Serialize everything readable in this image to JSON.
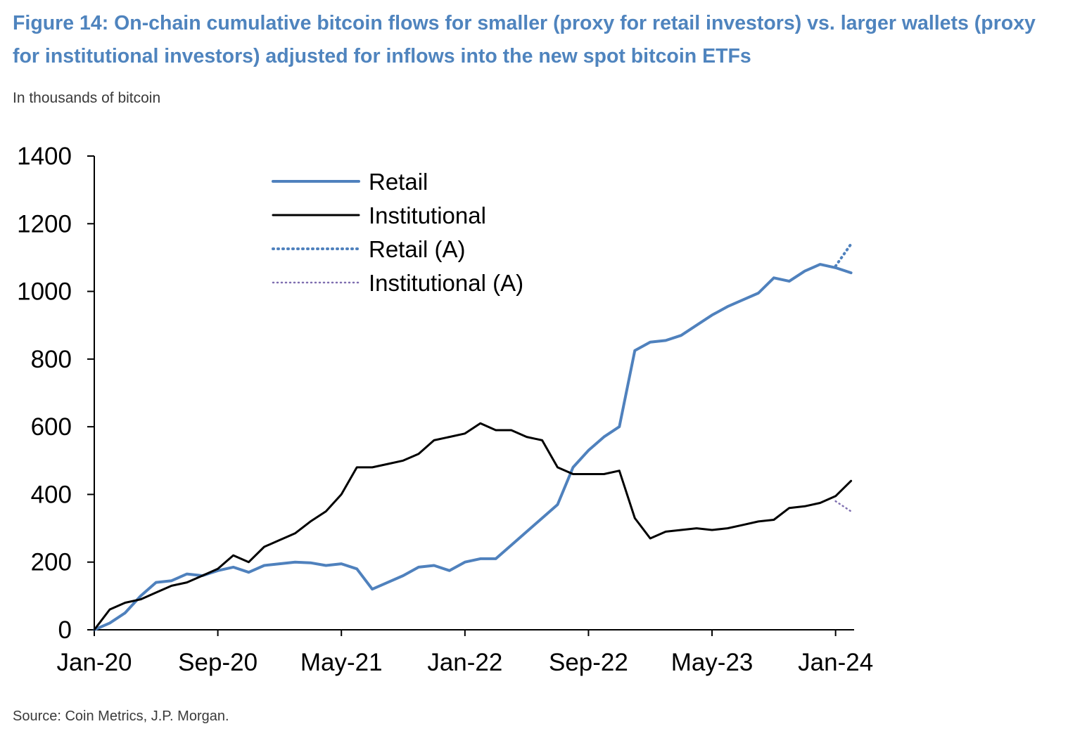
{
  "figure": {
    "title": "Figure 14: On-chain cumulative bitcoin flows for smaller (proxy for retail investors) vs. larger wallets (proxy for institutional investors) adjusted for inflows into the new spot bitcoin ETFs",
    "subtitle": "In thousands of bitcoin",
    "source": "Source: Coin Metrics, J.P. Morgan."
  },
  "colors": {
    "title": "#4f84be",
    "retail": "#4f81bd",
    "institutional": "#000000",
    "retail_adjusted": "#4f81bd",
    "institutional_adjusted": "#7f6fb0"
  },
  "chart_data": {
    "type": "line",
    "title": "",
    "xlabel": "",
    "ylabel": "",
    "x_type": "date",
    "xlim": [
      "2020-01",
      "2024-02"
    ],
    "ylim": [
      0,
      1400
    ],
    "y_ticks": [
      0,
      200,
      400,
      600,
      800,
      1000,
      1200,
      1400
    ],
    "x_ticks": [
      "Jan-20",
      "Sep-20",
      "May-21",
      "Jan-22",
      "Sep-22",
      "May-23",
      "Jan-24"
    ],
    "grid": false,
    "legend_position": "top-left",
    "series": [
      {
        "name": "Retail",
        "style": "solid",
        "points": [
          [
            "2020-01",
            0
          ],
          [
            "2020-02",
            20
          ],
          [
            "2020-03",
            50
          ],
          [
            "2020-04",
            100
          ],
          [
            "2020-05",
            140
          ],
          [
            "2020-06",
            145
          ],
          [
            "2020-07",
            165
          ],
          [
            "2020-08",
            160
          ],
          [
            "2020-09",
            175
          ],
          [
            "2020-10",
            185
          ],
          [
            "2020-11",
            170
          ],
          [
            "2020-12",
            190
          ],
          [
            "2021-01",
            195
          ],
          [
            "2021-02",
            200
          ],
          [
            "2021-03",
            198
          ],
          [
            "2021-04",
            190
          ],
          [
            "2021-05",
            195
          ],
          [
            "2021-06",
            180
          ],
          [
            "2021-07",
            120
          ],
          [
            "2021-08",
            140
          ],
          [
            "2021-09",
            160
          ],
          [
            "2021-10",
            185
          ],
          [
            "2021-11",
            190
          ],
          [
            "2021-12",
            175
          ],
          [
            "2022-01",
            200
          ],
          [
            "2022-02",
            210
          ],
          [
            "2022-03",
            210
          ],
          [
            "2022-04",
            250
          ],
          [
            "2022-05",
            290
          ],
          [
            "2022-06",
            330
          ],
          [
            "2022-07",
            370
          ],
          [
            "2022-08",
            480
          ],
          [
            "2022-09",
            530
          ],
          [
            "2022-10",
            570
          ],
          [
            "2022-11",
            600
          ],
          [
            "2022-12",
            825
          ],
          [
            "2023-01",
            850
          ],
          [
            "2023-02",
            855
          ],
          [
            "2023-03",
            870
          ],
          [
            "2023-04",
            900
          ],
          [
            "2023-05",
            930
          ],
          [
            "2023-06",
            955
          ],
          [
            "2023-07",
            975
          ],
          [
            "2023-08",
            995
          ],
          [
            "2023-09",
            1040
          ],
          [
            "2023-10",
            1030
          ],
          [
            "2023-11",
            1060
          ],
          [
            "2023-12",
            1080
          ],
          [
            "2024-01",
            1070
          ],
          [
            "2024-02",
            1055
          ]
        ]
      },
      {
        "name": "Institutional",
        "style": "solid",
        "points": [
          [
            "2020-01",
            0
          ],
          [
            "2020-02",
            60
          ],
          [
            "2020-03",
            80
          ],
          [
            "2020-04",
            90
          ],
          [
            "2020-05",
            110
          ],
          [
            "2020-06",
            130
          ],
          [
            "2020-07",
            140
          ],
          [
            "2020-08",
            160
          ],
          [
            "2020-09",
            180
          ],
          [
            "2020-10",
            220
          ],
          [
            "2020-11",
            200
          ],
          [
            "2020-12",
            245
          ],
          [
            "2021-01",
            265
          ],
          [
            "2021-02",
            285
          ],
          [
            "2021-03",
            320
          ],
          [
            "2021-04",
            350
          ],
          [
            "2021-05",
            400
          ],
          [
            "2021-06",
            480
          ],
          [
            "2021-07",
            480
          ],
          [
            "2021-08",
            490
          ],
          [
            "2021-09",
            500
          ],
          [
            "2021-10",
            520
          ],
          [
            "2021-11",
            560
          ],
          [
            "2021-12",
            570
          ],
          [
            "2022-01",
            580
          ],
          [
            "2022-02",
            610
          ],
          [
            "2022-03",
            590
          ],
          [
            "2022-04",
            590
          ],
          [
            "2022-05",
            570
          ],
          [
            "2022-06",
            560
          ],
          [
            "2022-07",
            480
          ],
          [
            "2022-08",
            460
          ],
          [
            "2022-09",
            460
          ],
          [
            "2022-10",
            460
          ],
          [
            "2022-11",
            470
          ],
          [
            "2022-12",
            330
          ],
          [
            "2023-01",
            270
          ],
          [
            "2023-02",
            290
          ],
          [
            "2023-03",
            295
          ],
          [
            "2023-04",
            300
          ],
          [
            "2023-05",
            295
          ],
          [
            "2023-06",
            300
          ],
          [
            "2023-07",
            310
          ],
          [
            "2023-08",
            320
          ],
          [
            "2023-09",
            325
          ],
          [
            "2023-10",
            360
          ],
          [
            "2023-11",
            365
          ],
          [
            "2023-12",
            375
          ],
          [
            "2024-01",
            395
          ],
          [
            "2024-02",
            440
          ]
        ]
      },
      {
        "name": "Retail (A)",
        "style": "dotted",
        "points": [
          [
            "2024-01",
            1075
          ],
          [
            "2024-02",
            1140
          ]
        ]
      },
      {
        "name": "Institutional (A)",
        "style": "dotted",
        "points": [
          [
            "2024-01",
            380
          ],
          [
            "2024-02",
            350
          ]
        ]
      }
    ]
  }
}
